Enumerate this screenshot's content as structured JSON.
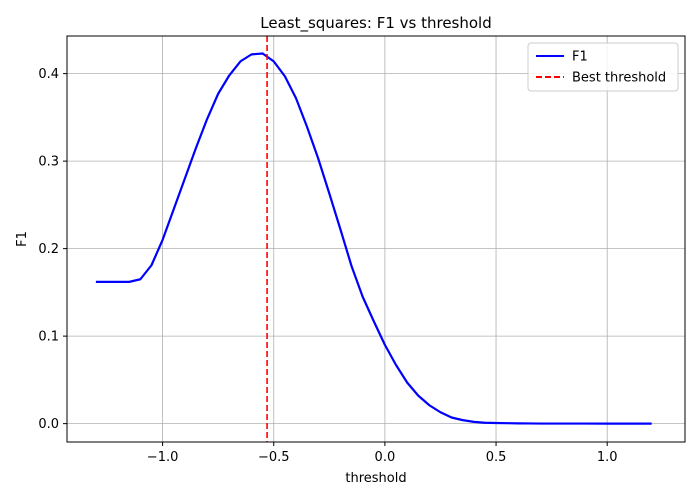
{
  "chart_data": {
    "type": "line",
    "title": "Least_squares: F1 vs threshold",
    "xlabel": "threshold",
    "ylabel": "F1",
    "xlim": [
      -1.43,
      1.35
    ],
    "ylim": [
      -0.021,
      0.443
    ],
    "xticks": [
      -1.0,
      -0.5,
      0.0,
      0.5,
      1.0
    ],
    "xtick_labels": [
      "−1.0",
      "−0.5",
      "0.0",
      "0.5",
      "1.0"
    ],
    "yticks": [
      0.0,
      0.1,
      0.2,
      0.3,
      0.4
    ],
    "ytick_labels": [
      "0.0",
      "0.1",
      "0.2",
      "0.3",
      "0.4"
    ],
    "grid": true,
    "legend_position": "top-right",
    "series": [
      {
        "name": "F1",
        "color": "#0000ff",
        "style": "solid",
        "x": [
          -1.3,
          -1.25,
          -1.2,
          -1.15,
          -1.1,
          -1.05,
          -1.0,
          -0.95,
          -0.9,
          -0.85,
          -0.8,
          -0.75,
          -0.7,
          -0.65,
          -0.6,
          -0.55,
          -0.5,
          -0.45,
          -0.4,
          -0.35,
          -0.3,
          -0.25,
          -0.2,
          -0.15,
          -0.1,
          -0.05,
          0.0,
          0.05,
          0.1,
          0.15,
          0.2,
          0.25,
          0.3,
          0.35,
          0.4,
          0.45,
          0.5,
          0.55,
          0.6,
          0.65,
          0.7,
          0.8,
          0.9,
          1.0,
          1.1,
          1.2
        ],
        "y": [
          0.162,
          0.162,
          0.162,
          0.162,
          0.165,
          0.181,
          0.21,
          0.245,
          0.28,
          0.315,
          0.348,
          0.377,
          0.398,
          0.414,
          0.422,
          0.423,
          0.414,
          0.397,
          0.372,
          0.339,
          0.303,
          0.263,
          0.222,
          0.18,
          0.145,
          0.117,
          0.09,
          0.067,
          0.047,
          0.032,
          0.021,
          0.013,
          0.007,
          0.004,
          0.002,
          0.001,
          0.0007,
          0.0005,
          0.0003,
          0.0002,
          0.0001,
          0.0001,
          0.0001,
          0.0,
          0.0,
          0.0
        ]
      }
    ],
    "vlines": [
      {
        "name": "Best threshold",
        "x": -0.53,
        "color": "#ff0000",
        "style": "dashed"
      }
    ]
  }
}
